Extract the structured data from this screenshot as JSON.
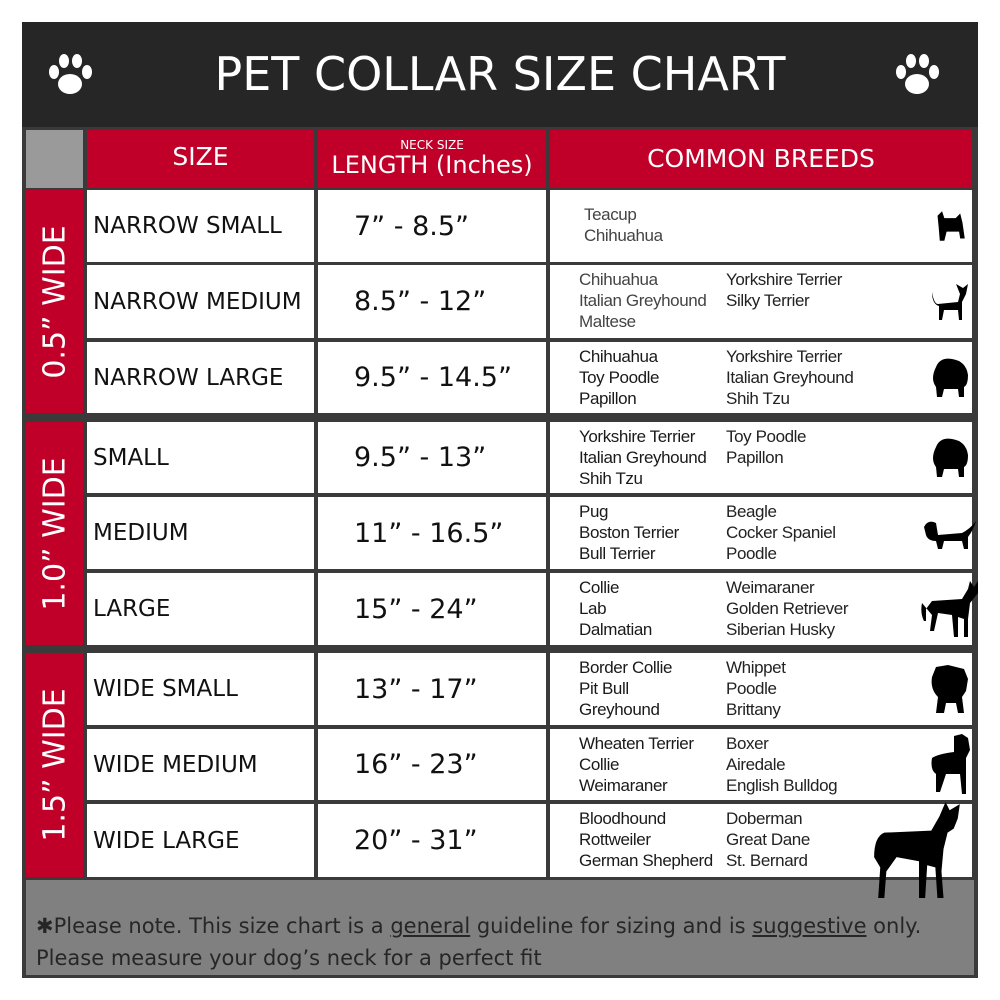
{
  "title": "PET COLLAR SIZE CHART",
  "headers": {
    "size": "SIZE",
    "length_small": "NECK SIZE",
    "length": "LENGTH (Inches)",
    "breeds": "COMMON BREEDS"
  },
  "groups": [
    {
      "label": "0.5” WIDE",
      "rows": [
        {
          "size": "NARROW SMALL",
          "length": "7” - 8.5”",
          "breeds_col1": [
            "Teacup",
            "Chihuahua"
          ],
          "breeds_col2": [],
          "icon": "yorkie-silhouette-icon"
        },
        {
          "size": "NARROW MEDIUM",
          "length": "8.5” - 12”",
          "breeds_col1": [
            "Chihuahua",
            "Italian Greyhound",
            "Maltese"
          ],
          "breeds_col2": [
            "Yorkshire Terrier",
            "Silky Terrier"
          ],
          "icon": "chihuahua-silhouette-icon"
        },
        {
          "size": "NARROW LARGE",
          "length": "9.5” - 14.5”",
          "breeds_col1": [
            "Chihuahua",
            "Toy Poodle",
            "Papillon"
          ],
          "breeds_col2": [
            "Yorkshire Terrier",
            "Italian Greyhound",
            "Shih Tzu"
          ],
          "icon": "pomeranian-silhouette-icon"
        }
      ]
    },
    {
      "label": "1.0” WIDE",
      "rows": [
        {
          "size": "SMALL",
          "length": "9.5” - 13”",
          "breeds_col1": [
            "Yorkshire Terrier",
            "Italian Greyhound",
            "Shih Tzu"
          ],
          "breeds_col2": [
            "Toy Poodle",
            "Papillon"
          ],
          "icon": "pomeranian-silhouette-icon"
        },
        {
          "size": "MEDIUM",
          "length": "11” - 16.5”",
          "breeds_col1": [
            "Pug",
            "Boston Terrier",
            "Bull Terrier"
          ],
          "breeds_col2": [
            "Beagle",
            "Cocker Spaniel",
            "Poodle"
          ],
          "icon": "spaniel-silhouette-icon"
        },
        {
          "size": "LARGE",
          "length": "15” - 24”",
          "breeds_col1": [
            "Collie",
            "Lab",
            "Dalmatian"
          ],
          "breeds_col2": [
            "Weimaraner",
            "Golden Retriever",
            "Siberian Husky"
          ],
          "icon": "shepherd-silhouette-icon"
        }
      ]
    },
    {
      "label": "1.5” WIDE",
      "rows": [
        {
          "size": "WIDE SMALL",
          "length": "13” - 17”",
          "breeds_col1": [
            "Border Collie",
            "Pit Bull",
            "Greyhound"
          ],
          "breeds_col2": [
            "Whippet",
            "Poodle",
            "Brittany"
          ],
          "icon": "bulldog-silhouette-icon"
        },
        {
          "size": "WIDE MEDIUM",
          "length": "16” - 23”",
          "breeds_col1": [
            "Wheaten Terrier",
            "Collie",
            "Weimaraner"
          ],
          "breeds_col2": [
            "Boxer",
            "Airedale",
            "English Bulldog"
          ],
          "icon": "pitbull-silhouette-icon"
        },
        {
          "size": "WIDE LARGE",
          "length": "20” - 31”",
          "breeds_col1": [
            "Bloodhound",
            "Rottweiler",
            "German Shepherd"
          ],
          "breeds_col2": [
            "Doberman",
            "Great Dane",
            "St. Bernard"
          ],
          "icon": "doberman-silhouette-icon"
        }
      ]
    }
  ],
  "footer": {
    "prefix": "✱Please note. This size chart is a",
    "u1": "general",
    "mid": " guideline for sizing and is",
    "u2": "suggestive",
    "suffix": " only.",
    "line2": "Please measure your dog’s neck for a perfect fit"
  },
  "colors": {
    "accent": "#c1002a",
    "title_bg": "#262626",
    "footer_bg": "#808080"
  }
}
